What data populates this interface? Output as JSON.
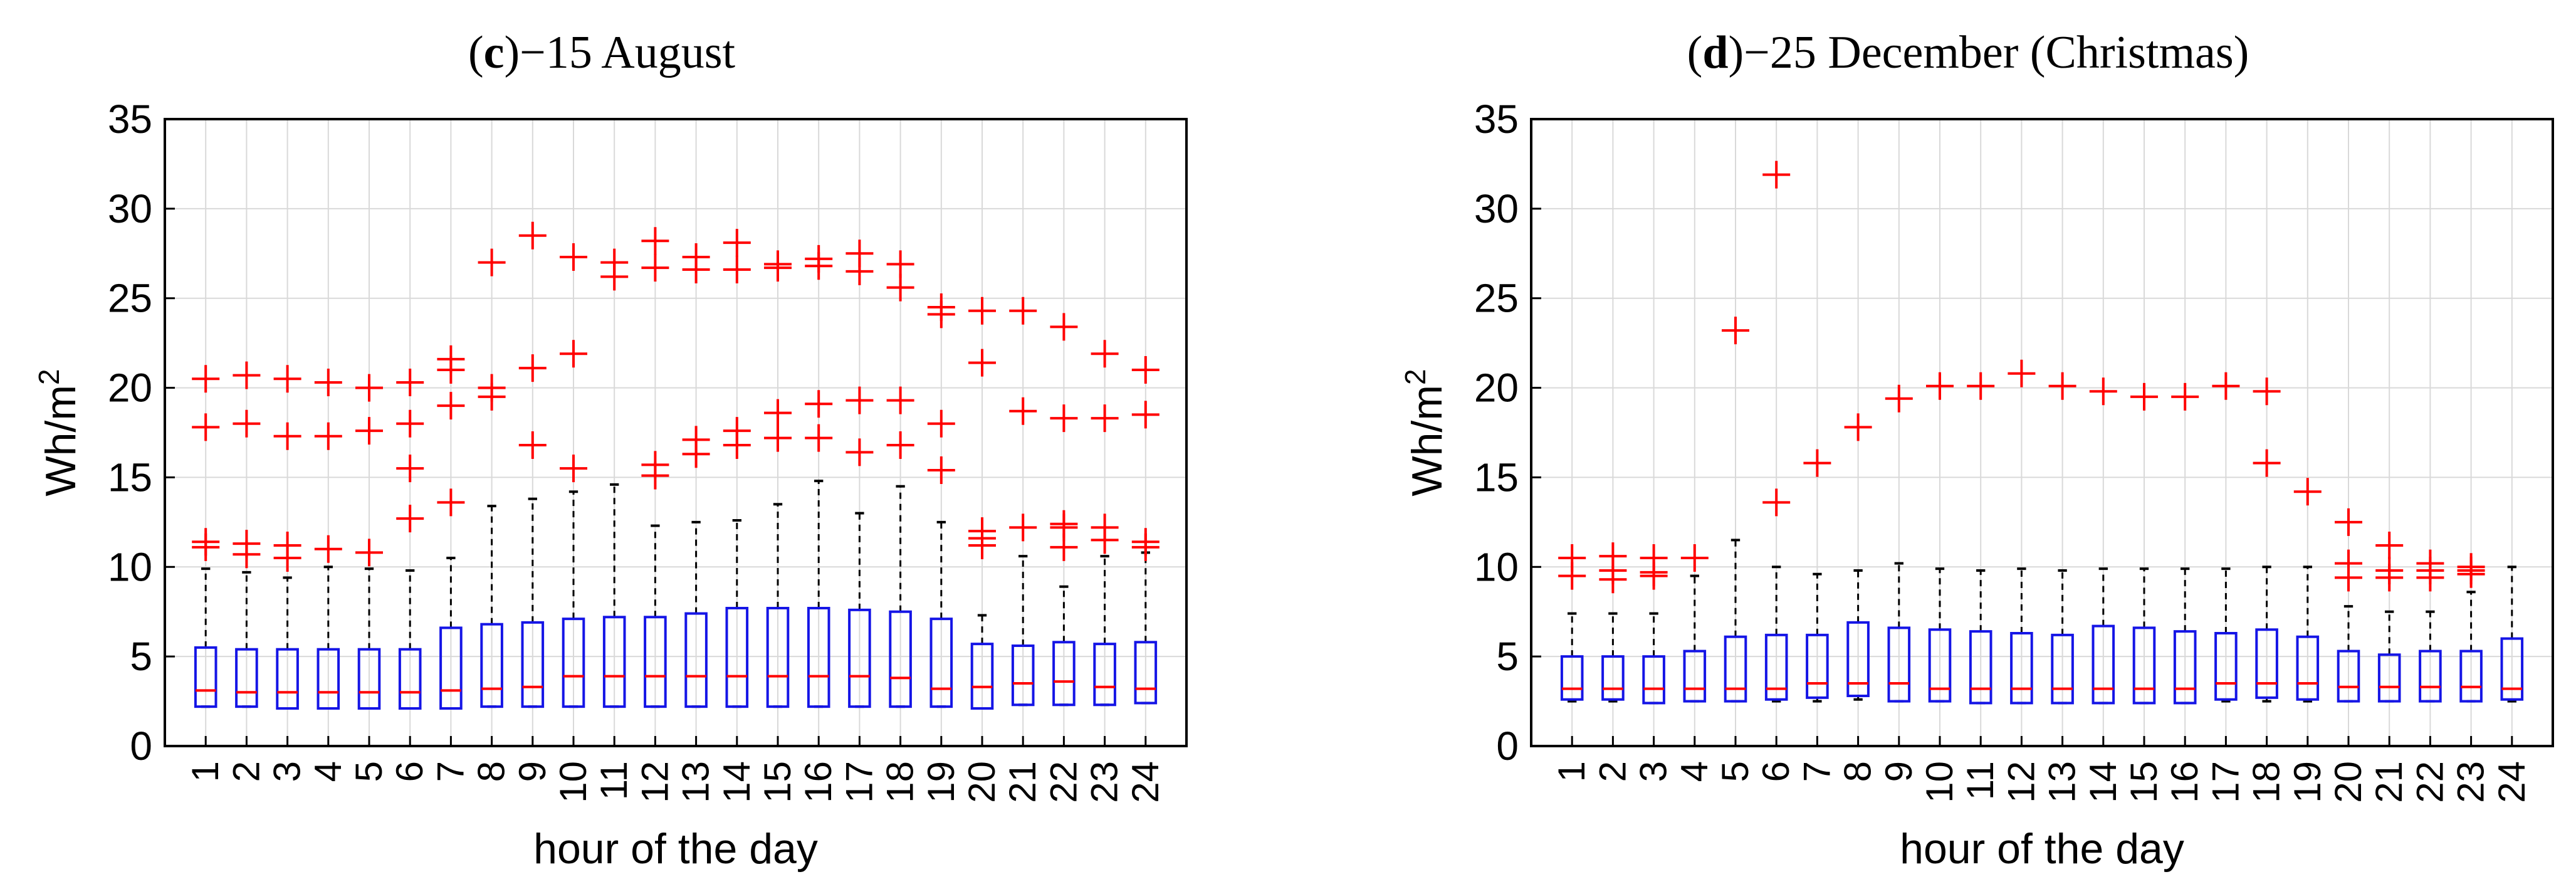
{
  "figure": {
    "panels": [
      {
        "panel_label": "c",
        "title_rest": "−15 August",
        "ylabel": "Wh/m",
        "ylabel_sup": "2",
        "xlabel": "hour of the day"
      },
      {
        "panel_label": "d",
        "title_rest": "−25 December (Christmas)",
        "ylabel": "Wh/m",
        "ylabel_sup": "2",
        "xlabel": "hour of the day"
      }
    ]
  },
  "colors": {
    "box": "#1515e6",
    "median": "#ff0000",
    "outlier": "#ff0000",
    "whisker": "#000000",
    "grid": "#d9d9d9",
    "axis": "#000000",
    "background": "#ffffff"
  },
  "chart_data": [
    {
      "type": "boxplot",
      "title": "(c)−15 August",
      "xlabel": "hour of the day",
      "ylabel": "Wh/m2",
      "ylim": [
        0,
        35
      ],
      "yticks": [
        0,
        5,
        10,
        15,
        20,
        25,
        30,
        35
      ],
      "grid": true,
      "categories": [
        "1",
        "2",
        "3",
        "4",
        "5",
        "6",
        "7",
        "8",
        "9",
        "10",
        "11",
        "12",
        "13",
        "14",
        "15",
        "16",
        "17",
        "18",
        "19",
        "20",
        "21",
        "22",
        "23",
        "24"
      ],
      "boxes": [
        {
          "q1": 2.2,
          "median": 3.1,
          "q3": 5.5,
          "whisker_low": 2.2,
          "whisker_high": 9.9,
          "outliers": [
            11.1,
            11.4,
            17.8,
            20.5
          ]
        },
        {
          "q1": 2.2,
          "median": 3.0,
          "q3": 5.4,
          "whisker_low": 2.2,
          "whisker_high": 9.7,
          "outliers": [
            10.7,
            11.3,
            18.0,
            20.7
          ]
        },
        {
          "q1": 2.1,
          "median": 3.0,
          "q3": 5.4,
          "whisker_low": 2.1,
          "whisker_high": 9.4,
          "outliers": [
            10.5,
            11.2,
            17.3,
            20.5
          ]
        },
        {
          "q1": 2.1,
          "median": 3.0,
          "q3": 5.4,
          "whisker_low": 2.1,
          "whisker_high": 10.0,
          "outliers": [
            11.0,
            17.3,
            20.3
          ]
        },
        {
          "q1": 2.1,
          "median": 3.0,
          "q3": 5.4,
          "whisker_low": 2.1,
          "whisker_high": 9.9,
          "outliers": [
            10.8,
            17.6,
            20.0
          ]
        },
        {
          "q1": 2.1,
          "median": 3.0,
          "q3": 5.4,
          "whisker_low": 2.1,
          "whisker_high": 9.8,
          "outliers": [
            12.7,
            15.5,
            18.0,
            20.3
          ]
        },
        {
          "q1": 2.1,
          "median": 3.1,
          "q3": 6.6,
          "whisker_low": 2.1,
          "whisker_high": 10.5,
          "outliers": [
            13.6,
            19.0,
            21.0,
            21.6
          ]
        },
        {
          "q1": 2.2,
          "median": 3.2,
          "q3": 6.8,
          "whisker_low": 2.2,
          "whisker_high": 13.4,
          "outliers": [
            19.5,
            20.0,
            27.0
          ]
        },
        {
          "q1": 2.2,
          "median": 3.3,
          "q3": 6.9,
          "whisker_low": 2.2,
          "whisker_high": 13.8,
          "outliers": [
            16.8,
            21.1,
            28.5
          ]
        },
        {
          "q1": 2.2,
          "median": 3.9,
          "q3": 7.1,
          "whisker_low": 2.2,
          "whisker_high": 14.2,
          "outliers": [
            15.5,
            21.9,
            27.3
          ]
        },
        {
          "q1": 2.2,
          "median": 3.9,
          "q3": 7.2,
          "whisker_low": 2.2,
          "whisker_high": 14.6,
          "outliers": [
            26.2,
            27.0
          ]
        },
        {
          "q1": 2.2,
          "median": 3.9,
          "q3": 7.2,
          "whisker_low": 2.2,
          "whisker_high": 12.3,
          "outliers": [
            15.1,
            15.7,
            26.7,
            28.2
          ]
        },
        {
          "q1": 2.2,
          "median": 3.9,
          "q3": 7.4,
          "whisker_low": 2.2,
          "whisker_high": 12.5,
          "outliers": [
            16.3,
            17.1,
            26.6,
            27.3
          ]
        },
        {
          "q1": 2.2,
          "median": 3.9,
          "q3": 7.7,
          "whisker_low": 2.2,
          "whisker_high": 12.6,
          "outliers": [
            16.8,
            17.6,
            26.6,
            28.1
          ]
        },
        {
          "q1": 2.2,
          "median": 3.9,
          "q3": 7.7,
          "whisker_low": 2.2,
          "whisker_high": 13.5,
          "outliers": [
            17.2,
            18.6,
            26.7,
            26.9
          ]
        },
        {
          "q1": 2.2,
          "median": 3.9,
          "q3": 7.7,
          "whisker_low": 2.2,
          "whisker_high": 14.8,
          "outliers": [
            17.2,
            19.1,
            26.8,
            27.2
          ]
        },
        {
          "q1": 2.2,
          "median": 3.9,
          "q3": 7.6,
          "whisker_low": 2.2,
          "whisker_high": 13.0,
          "outliers": [
            16.4,
            19.3,
            26.5,
            27.5
          ]
        },
        {
          "q1": 2.2,
          "median": 3.8,
          "q3": 7.5,
          "whisker_low": 2.2,
          "whisker_high": 14.5,
          "outliers": [
            16.8,
            19.3,
            25.6,
            26.9
          ]
        },
        {
          "q1": 2.2,
          "median": 3.2,
          "q3": 7.1,
          "whisker_low": 2.2,
          "whisker_high": 12.5,
          "outliers": [
            15.4,
            18.0,
            24.1,
            24.5
          ]
        },
        {
          "q1": 2.1,
          "median": 3.3,
          "q3": 5.7,
          "whisker_low": 2.1,
          "whisker_high": 7.3,
          "outliers": [
            11.2,
            11.6,
            12.0,
            21.4,
            24.3
          ]
        },
        {
          "q1": 2.3,
          "median": 3.5,
          "q3": 5.6,
          "whisker_low": 2.3,
          "whisker_high": 10.6,
          "outliers": [
            12.2,
            18.7,
            24.3
          ]
        },
        {
          "q1": 2.3,
          "median": 3.6,
          "q3": 5.8,
          "whisker_low": 2.3,
          "whisker_high": 8.9,
          "outliers": [
            11.1,
            12.2,
            12.4,
            18.3,
            23.4
          ]
        },
        {
          "q1": 2.3,
          "median": 3.3,
          "q3": 5.7,
          "whisker_low": 2.3,
          "whisker_high": 10.6,
          "outliers": [
            11.5,
            12.2,
            18.3,
            21.9
          ]
        },
        {
          "q1": 2.4,
          "median": 3.2,
          "q3": 5.8,
          "whisker_low": 2.4,
          "whisker_high": 10.8,
          "outliers": [
            11.1,
            11.4,
            18.5,
            21.0
          ]
        }
      ]
    },
    {
      "type": "boxplot",
      "title": "(d)−25 December (Christmas)",
      "xlabel": "hour of the day",
      "ylabel": "Wh/m2",
      "ylim": [
        0,
        35
      ],
      "yticks": [
        0,
        5,
        10,
        15,
        20,
        25,
        30,
        35
      ],
      "grid": true,
      "categories": [
        "1",
        "2",
        "3",
        "4",
        "5",
        "6",
        "7",
        "8",
        "9",
        "10",
        "11",
        "12",
        "13",
        "14",
        "15",
        "16",
        "17",
        "18",
        "19",
        "20",
        "21",
        "22",
        "23",
        "24"
      ],
      "boxes": [
        {
          "q1": 2.6,
          "median": 3.2,
          "q3": 5.0,
          "whisker_low": 2.5,
          "whisker_high": 7.4,
          "outliers": [
            9.5,
            10.5
          ]
        },
        {
          "q1": 2.6,
          "median": 3.2,
          "q3": 5.0,
          "whisker_low": 2.5,
          "whisker_high": 7.4,
          "outliers": [
            9.3,
            9.8,
            10.6
          ]
        },
        {
          "q1": 2.4,
          "median": 3.2,
          "q3": 5.0,
          "whisker_low": 2.4,
          "whisker_high": 7.4,
          "outliers": [
            9.5,
            9.7,
            10.5
          ]
        },
        {
          "q1": 2.5,
          "median": 3.2,
          "q3": 5.3,
          "whisker_low": 2.5,
          "whisker_high": 9.5,
          "outliers": [
            10.5
          ]
        },
        {
          "q1": 2.5,
          "median": 3.2,
          "q3": 6.1,
          "whisker_low": 2.5,
          "whisker_high": 11.5,
          "outliers": [
            23.2
          ]
        },
        {
          "q1": 2.6,
          "median": 3.2,
          "q3": 6.2,
          "whisker_low": 2.5,
          "whisker_high": 10.0,
          "outliers": [
            13.6,
            31.9
          ]
        },
        {
          "q1": 2.7,
          "median": 3.5,
          "q3": 6.2,
          "whisker_low": 2.5,
          "whisker_high": 9.6,
          "outliers": [
            15.8
          ]
        },
        {
          "q1": 2.8,
          "median": 3.5,
          "q3": 6.9,
          "whisker_low": 2.6,
          "whisker_high": 9.8,
          "outliers": [
            17.8
          ]
        },
        {
          "q1": 2.5,
          "median": 3.5,
          "q3": 6.6,
          "whisker_low": 2.5,
          "whisker_high": 10.2,
          "outliers": [
            19.4
          ]
        },
        {
          "q1": 2.5,
          "median": 3.2,
          "q3": 6.5,
          "whisker_low": 2.5,
          "whisker_high": 9.9,
          "outliers": [
            20.1
          ]
        },
        {
          "q1": 2.4,
          "median": 3.2,
          "q3": 6.4,
          "whisker_low": 2.4,
          "whisker_high": 9.8,
          "outliers": [
            20.1
          ]
        },
        {
          "q1": 2.4,
          "median": 3.2,
          "q3": 6.3,
          "whisker_low": 2.4,
          "whisker_high": 9.9,
          "outliers": [
            20.8
          ]
        },
        {
          "q1": 2.4,
          "median": 3.2,
          "q3": 6.2,
          "whisker_low": 2.4,
          "whisker_high": 9.8,
          "outliers": [
            20.1
          ]
        },
        {
          "q1": 2.4,
          "median": 3.2,
          "q3": 6.7,
          "whisker_low": 2.4,
          "whisker_high": 9.9,
          "outliers": [
            19.8
          ]
        },
        {
          "q1": 2.4,
          "median": 3.2,
          "q3": 6.6,
          "whisker_low": 2.4,
          "whisker_high": 9.9,
          "outliers": [
            19.5
          ]
        },
        {
          "q1": 2.4,
          "median": 3.2,
          "q3": 6.4,
          "whisker_low": 2.4,
          "whisker_high": 9.9,
          "outliers": [
            19.5
          ]
        },
        {
          "q1": 2.6,
          "median": 3.5,
          "q3": 6.3,
          "whisker_low": 2.5,
          "whisker_high": 9.9,
          "outliers": [
            20.1
          ]
        },
        {
          "q1": 2.7,
          "median": 3.5,
          "q3": 6.5,
          "whisker_low": 2.5,
          "whisker_high": 10.0,
          "outliers": [
            15.8,
            19.8
          ]
        },
        {
          "q1": 2.6,
          "median": 3.5,
          "q3": 6.1,
          "whisker_low": 2.5,
          "whisker_high": 10.0,
          "outliers": [
            14.2
          ]
        },
        {
          "q1": 2.5,
          "median": 3.3,
          "q3": 5.3,
          "whisker_low": 2.5,
          "whisker_high": 7.8,
          "outliers": [
            9.4,
            10.2,
            12.5
          ]
        },
        {
          "q1": 2.5,
          "median": 3.3,
          "q3": 5.1,
          "whisker_low": 2.5,
          "whisker_high": 7.5,
          "outliers": [
            9.4,
            9.8,
            11.2
          ]
        },
        {
          "q1": 2.5,
          "median": 3.3,
          "q3": 5.3,
          "whisker_low": 2.5,
          "whisker_high": 7.5,
          "outliers": [
            9.4,
            9.8,
            10.2
          ]
        },
        {
          "q1": 2.5,
          "median": 3.3,
          "q3": 5.3,
          "whisker_low": 2.5,
          "whisker_high": 8.6,
          "outliers": [
            9.6,
            9.8,
            10.0
          ]
        },
        {
          "q1": 2.6,
          "median": 3.2,
          "q3": 6.0,
          "whisker_low": 2.5,
          "whisker_high": 10.0,
          "outliers": []
        }
      ]
    }
  ]
}
